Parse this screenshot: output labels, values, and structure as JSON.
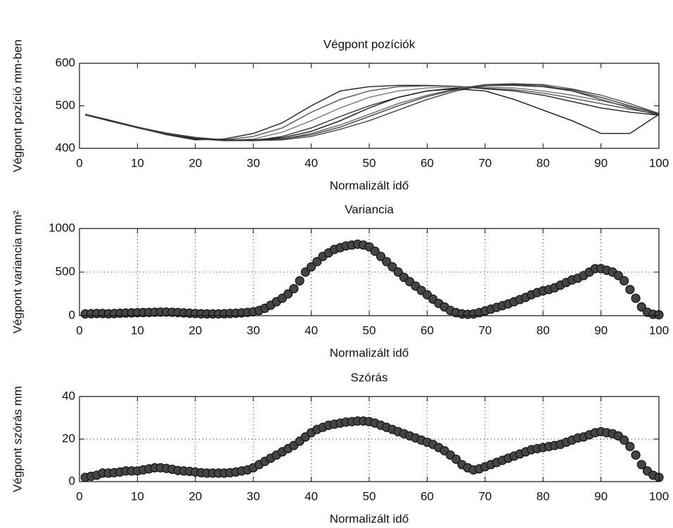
{
  "chart_data": [
    {
      "type": "line",
      "title": "Végpont pozíciók",
      "xlabel": "Normalizált idő",
      "ylabel": "Végpont pozíció mm-ben",
      "x": [
        1,
        5,
        10,
        15,
        20,
        25,
        30,
        35,
        40,
        45,
        50,
        55,
        60,
        65,
        70,
        75,
        80,
        85,
        90,
        95,
        100
      ],
      "series": [
        {
          "color": "#222",
          "values": [
            480,
            465,
            450,
            432,
            420,
            422,
            435,
            460,
            500,
            535,
            545,
            548,
            548,
            546,
            540,
            535,
            525,
            510,
            495,
            485,
            478
          ]
        },
        {
          "color": "#555",
          "values": [
            480,
            466,
            450,
            433,
            422,
            420,
            428,
            448,
            485,
            515,
            535,
            545,
            547,
            546,
            542,
            538,
            530,
            518,
            505,
            492,
            480
          ]
        },
        {
          "color": "#777",
          "values": [
            478,
            465,
            448,
            432,
            422,
            418,
            422,
            438,
            465,
            495,
            520,
            535,
            542,
            545,
            545,
            542,
            535,
            525,
            512,
            498,
            482
          ]
        },
        {
          "color": "#333",
          "values": [
            480,
            467,
            450,
            435,
            424,
            418,
            418,
            428,
            448,
            475,
            500,
            520,
            535,
            542,
            548,
            548,
            545,
            538,
            525,
            505,
            482
          ]
        },
        {
          "color": "#666",
          "values": [
            478,
            465,
            448,
            434,
            425,
            420,
            418,
            422,
            435,
            455,
            480,
            505,
            525,
            540,
            550,
            552,
            550,
            540,
            525,
            505,
            480
          ]
        },
        {
          "color": "#444",
          "values": [
            480,
            466,
            450,
            436,
            426,
            420,
            418,
            420,
            428,
            445,
            465,
            490,
            515,
            535,
            548,
            552,
            548,
            535,
            515,
            495,
            478
          ]
        },
        {
          "color": "#1a1a1a",
          "values": [
            480,
            466,
            450,
            433,
            422,
            420,
            420,
            425,
            440,
            465,
            495,
            520,
            535,
            540,
            535,
            515,
            490,
            465,
            435,
            435,
            480
          ]
        },
        {
          "color": "#3a3a3a",
          "values": [
            480,
            465,
            449,
            434,
            424,
            420,
            419,
            422,
            432,
            450,
            475,
            500,
            522,
            538,
            548,
            550,
            545,
            535,
            520,
            500,
            480
          ]
        }
      ],
      "xlim": [
        0,
        100
      ],
      "xticks": [
        0,
        10,
        20,
        30,
        40,
        50,
        60,
        70,
        80,
        90,
        100
      ],
      "ylim": [
        400,
        600
      ],
      "yticks": [
        400,
        500,
        600
      ],
      "grid": false
    },
    {
      "type": "scatter",
      "title": "Variancia",
      "xlabel": "Normalizált idő",
      "ylabel": "Végpont variancia mm²",
      "color": "#454545",
      "x": [
        1,
        2,
        3,
        4,
        5,
        6,
        7,
        8,
        9,
        10,
        11,
        12,
        13,
        14,
        15,
        16,
        17,
        18,
        19,
        20,
        21,
        22,
        23,
        24,
        25,
        26,
        27,
        28,
        29,
        30,
        31,
        32,
        33,
        34,
        35,
        36,
        37,
        38,
        39,
        40,
        41,
        42,
        43,
        44,
        45,
        46,
        47,
        48,
        49,
        50,
        51,
        52,
        53,
        54,
        55,
        56,
        57,
        58,
        59,
        60,
        61,
        62,
        63,
        64,
        65,
        66,
        67,
        68,
        69,
        70,
        71,
        72,
        73,
        74,
        75,
        76,
        77,
        78,
        79,
        80,
        81,
        82,
        83,
        84,
        85,
        86,
        87,
        88,
        89,
        90,
        91,
        92,
        93,
        94,
        95,
        96,
        97,
        98,
        99,
        100
      ],
      "values": [
        20,
        22,
        25,
        25,
        22,
        24,
        28,
        30,
        32,
        34,
        36,
        38,
        40,
        42,
        42,
        40,
        36,
        32,
        28,
        25,
        22,
        20,
        20,
        20,
        22,
        25,
        28,
        32,
        38,
        45,
        60,
        85,
        120,
        160,
        200,
        250,
        310,
        400,
        500,
        560,
        620,
        680,
        720,
        760,
        780,
        800,
        810,
        820,
        810,
        790,
        740,
        680,
        620,
        560,
        500,
        440,
        390,
        340,
        290,
        240,
        190,
        140,
        100,
        60,
        35,
        20,
        15,
        20,
        35,
        55,
        75,
        95,
        115,
        135,
        160,
        185,
        210,
        240,
        265,
        285,
        300,
        320,
        350,
        380,
        410,
        430,
        460,
        500,
        540,
        540,
        520,
        500,
        460,
        400,
        300,
        200,
        100,
        40,
        15,
        10
      ],
      "xlim": [
        0,
        100
      ],
      "xticks": [
        0,
        10,
        20,
        30,
        40,
        50,
        60,
        70,
        80,
        90,
        100
      ],
      "ylim": [
        0,
        1000
      ],
      "yticks": [
        0,
        500,
        1000
      ],
      "grid": true
    },
    {
      "type": "scatter",
      "title": "Szórás",
      "xlabel": "Normalizált idő",
      "ylabel": "Végpont szórás mm",
      "color": "#454545",
      "x": [
        1,
        2,
        3,
        4,
        5,
        6,
        7,
        8,
        9,
        10,
        11,
        12,
        13,
        14,
        15,
        16,
        17,
        18,
        19,
        20,
        21,
        22,
        23,
        24,
        25,
        26,
        27,
        28,
        29,
        30,
        31,
        32,
        33,
        34,
        35,
        36,
        37,
        38,
        39,
        40,
        41,
        42,
        43,
        44,
        45,
        46,
        47,
        48,
        49,
        50,
        51,
        52,
        53,
        54,
        55,
        56,
        57,
        58,
        59,
        60,
        61,
        62,
        63,
        64,
        65,
        66,
        67,
        68,
        69,
        70,
        71,
        72,
        73,
        74,
        75,
        76,
        77,
        78,
        79,
        80,
        81,
        82,
        83,
        84,
        85,
        86,
        87,
        88,
        89,
        90,
        91,
        92,
        93,
        94,
        95,
        96,
        97,
        98,
        99,
        100
      ],
      "values": [
        2,
        2.5,
        3,
        4,
        4,
        4.2,
        4.5,
        5,
        5,
        5,
        5.5,
        6,
        6.5,
        6.5,
        6.2,
        5.8,
        5.2,
        5,
        4.8,
        4.5,
        4.2,
        4,
        4,
        4,
        4,
        4.2,
        4.5,
        5,
        5.5,
        6.5,
        8,
        9.5,
        11,
        12.5,
        14,
        15.5,
        17,
        19,
        21,
        23,
        24.5,
        25.5,
        26.5,
        27,
        27.5,
        28,
        28.2,
        28.5,
        28.5,
        28.2,
        27.5,
        26.5,
        25.5,
        24.5,
        23.5,
        22.5,
        21.5,
        20.5,
        19.5,
        18.5,
        17.5,
        16,
        14.5,
        12.5,
        10.5,
        8,
        6.5,
        5.5,
        6,
        7,
        8,
        9,
        10,
        11,
        12,
        13,
        14,
        15,
        15.5,
        16,
        16.5,
        17,
        17.5,
        18.5,
        19.5,
        20.5,
        21,
        22,
        23,
        23.5,
        23,
        22.5,
        21.5,
        19.5,
        16.5,
        12.5,
        8,
        5,
        3,
        2
      ],
      "xlim": [
        0,
        100
      ],
      "xticks": [
        0,
        10,
        20,
        30,
        40,
        50,
        60,
        70,
        80,
        90,
        100
      ],
      "ylim": [
        0,
        40
      ],
      "yticks": [
        0,
        20,
        40
      ],
      "grid": true
    }
  ]
}
